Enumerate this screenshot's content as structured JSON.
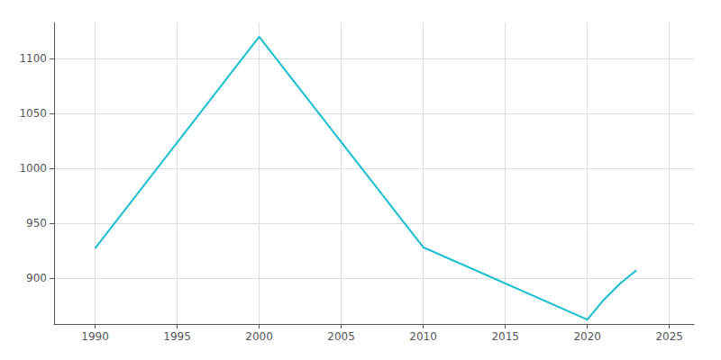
{
  "chart_data": {
    "type": "line",
    "x": [
      1990,
      2000,
      2010,
      2020,
      2021,
      2022,
      2023
    ],
    "values": [
      927,
      1120,
      928,
      862,
      880,
      895,
      907
    ],
    "color": "#17becf",
    "xlim": [
      1987.5,
      2026.5
    ],
    "ylim": [
      858,
      1133
    ],
    "xticks": [
      1990,
      1995,
      2000,
      2005,
      2010,
      2015,
      2020,
      2025
    ],
    "yticks": [
      900,
      950,
      1000,
      1050,
      1100
    ],
    "grid": true
  }
}
